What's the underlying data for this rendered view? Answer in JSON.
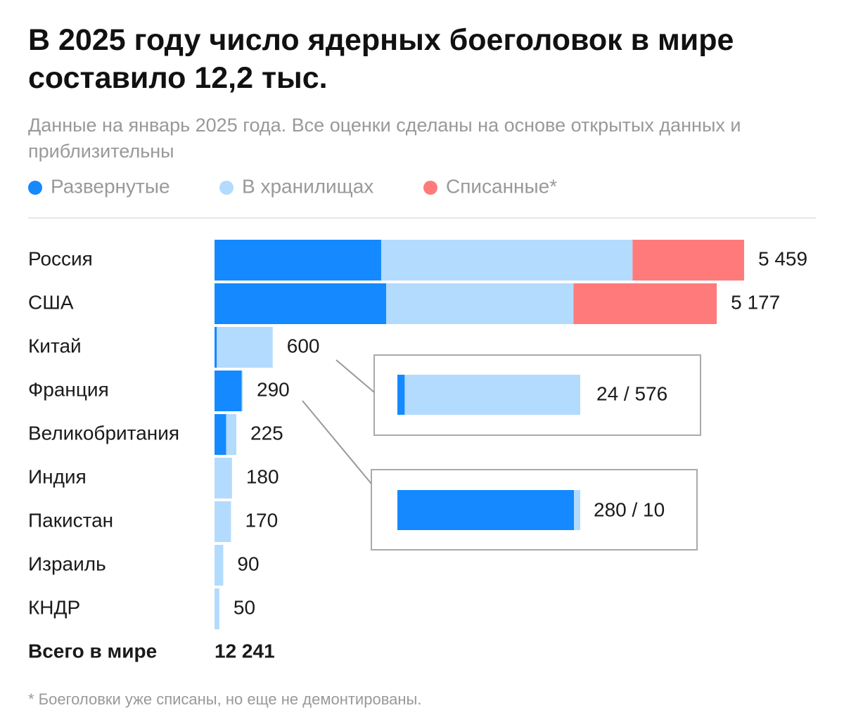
{
  "chart_data": {
    "type": "stacked-bar-horizontal",
    "title": "В 2025 году число ядерных боеголовок в мире составило 12,2 тыс.",
    "subtitle": "Данные на январь 2025 года. Все оценки сделаны на основе открытых данных и приблизительны",
    "categories": [
      "Россия",
      "США",
      "Китай",
      "Франция",
      "Великобритания",
      "Индия",
      "Пакистан",
      "Израиль",
      "КНДР"
    ],
    "series": [
      {
        "name": "Развернутые",
        "color": "#1589ff",
        "values": [
          1718,
          1770,
          24,
          280,
          120,
          0,
          0,
          0,
          0
        ]
      },
      {
        "name": "В хранилищах",
        "color": "#b3dbfd",
        "values": [
          2591,
          1930,
          576,
          10,
          105,
          180,
          170,
          90,
          50
        ]
      },
      {
        "name": "Списанные*",
        "color": "#ff7b7b",
        "values": [
          1150,
          1477,
          0,
          0,
          0,
          0,
          0,
          0,
          0
        ]
      }
    ],
    "totals": {
      "values": [
        5459,
        5177,
        600,
        290,
        225,
        180,
        170,
        90,
        50
      ],
      "value_labels": [
        "5 459",
        "5 177",
        "600",
        "290",
        "225",
        "180",
        "170",
        "90",
        "50"
      ]
    },
    "insets": [
      {
        "label": "24 / 576"
      },
      {
        "label": "280 / 10"
      }
    ],
    "total": {
      "label": "Всего в мире",
      "value": 12241,
      "value_label": "12 241"
    },
    "footnote": "* Боеголовки уже списаны, но еще не демонтированы."
  }
}
